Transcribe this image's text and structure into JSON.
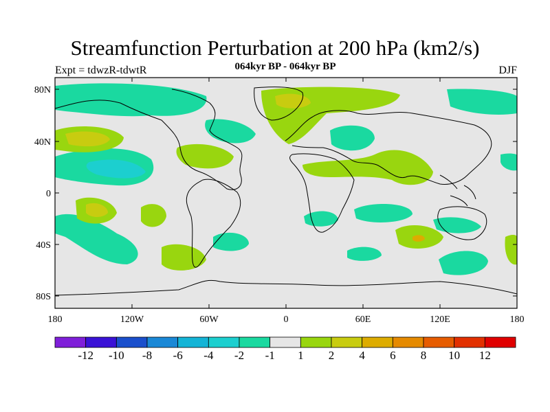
{
  "header": {
    "title": "Streamfunction Perturbation at 200 hPa (km2/s)",
    "subtitle": "064kyr BP - 064kyr BP",
    "left_label": "Expt = tdwzR-tdwtR",
    "right_label": "DJF"
  },
  "map": {
    "background": "#e6e6e6",
    "lat_ticks": [
      "80N",
      "40N",
      "0",
      "40S",
      "80S"
    ],
    "lon_ticks": [
      "180",
      "120W",
      "60W",
      "0",
      "60E",
      "120E",
      "180"
    ]
  },
  "colorbar": {
    "colors": [
      "#7f1fd9",
      "#3a12d6",
      "#1a4fcc",
      "#1a88d6",
      "#14b4d6",
      "#1ccfcf",
      "#1ad9a0",
      "#e6e6e6",
      "#99d60f",
      "#c8cc10",
      "#ddac00",
      "#e58a00",
      "#e65c00",
      "#e23000",
      "#e00000"
    ],
    "labels": [
      "-12",
      "-10",
      "-8",
      "-6",
      "-4",
      "-2",
      "-1",
      "1",
      "2",
      "4",
      "6",
      "8",
      "10",
      "12"
    ]
  }
}
